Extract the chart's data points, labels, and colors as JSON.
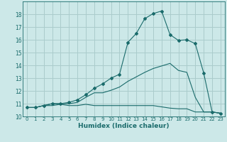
{
  "xlabel": "Humidex (Indice chaleur)",
  "background_color": "#cce8e8",
  "grid_color": "#aacccc",
  "line_color": "#1a6b6b",
  "xlim": [
    -0.5,
    23.5
  ],
  "ylim": [
    10.0,
    19.0
  ],
  "xticks": [
    0,
    1,
    2,
    3,
    4,
    5,
    6,
    7,
    8,
    9,
    10,
    11,
    12,
    13,
    14,
    15,
    16,
    17,
    18,
    19,
    20,
    21,
    22,
    23
  ],
  "yticks": [
    10,
    11,
    12,
    13,
    14,
    15,
    16,
    17,
    18
  ],
  "line1_x": [
    0,
    1,
    2,
    3,
    4,
    5,
    6,
    7,
    8,
    9,
    10,
    11,
    12,
    13,
    14,
    15,
    16,
    17,
    18,
    19,
    20,
    21,
    22,
    23
  ],
  "line1_y": [
    10.7,
    10.7,
    10.85,
    10.85,
    10.95,
    10.85,
    10.85,
    10.95,
    10.85,
    10.85,
    10.85,
    10.85,
    10.85,
    10.85,
    10.85,
    10.85,
    10.75,
    10.65,
    10.6,
    10.6,
    10.35,
    10.35,
    10.35,
    10.25
  ],
  "line2_x": [
    0,
    1,
    2,
    3,
    4,
    5,
    6,
    7,
    8,
    9,
    10,
    11,
    12,
    13,
    14,
    15,
    16,
    17,
    18,
    19,
    20,
    21,
    22,
    23
  ],
  "line2_y": [
    10.7,
    10.7,
    10.85,
    11.0,
    11.0,
    11.0,
    11.1,
    11.5,
    11.85,
    11.85,
    12.05,
    12.3,
    12.75,
    13.1,
    13.45,
    13.75,
    13.95,
    14.15,
    13.6,
    13.45,
    11.5,
    10.35,
    10.35,
    10.25
  ],
  "line3_x": [
    0,
    1,
    2,
    3,
    4,
    5,
    6,
    7,
    8,
    9,
    10,
    11,
    12,
    13,
    14,
    15,
    16,
    17,
    18,
    19,
    20,
    21,
    22,
    23
  ],
  "line3_y": [
    10.7,
    10.7,
    10.85,
    11.0,
    11.0,
    11.1,
    11.3,
    11.7,
    12.2,
    12.55,
    13.0,
    13.3,
    15.8,
    16.5,
    17.65,
    18.05,
    18.25,
    16.4,
    15.95,
    16.0,
    15.7,
    13.4,
    10.35,
    10.25
  ]
}
